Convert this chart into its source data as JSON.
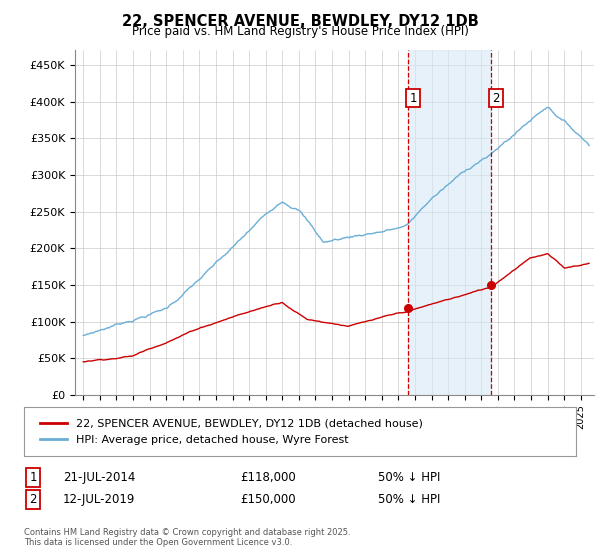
{
  "title": "22, SPENCER AVENUE, BEWDLEY, DY12 1DB",
  "subtitle": "Price paid vs. HM Land Registry's House Price Index (HPI)",
  "hpi_color": "#6baed6",
  "price_color": "#cc0000",
  "marker_color": "#cc0000",
  "vline_color": "#cc0000",
  "shade_color": "#d6e8f5",
  "annotation_box_color": "#cc0000",
  "ylim": [
    0,
    470000
  ],
  "yticks": [
    0,
    50000,
    100000,
    150000,
    200000,
    250000,
    300000,
    350000,
    400000,
    450000
  ],
  "ytick_labels": [
    "£0",
    "£50K",
    "£100K",
    "£150K",
    "£200K",
    "£250K",
    "£300K",
    "£350K",
    "£400K",
    "£450K"
  ],
  "sale1_date": "21-JUL-2014",
  "sale1_price": 118000,
  "sale1_label": "1",
  "sale1_note": "50% ↓ HPI",
  "sale2_date": "12-JUL-2019",
  "sale2_price": 150000,
  "sale2_label": "2",
  "sale2_note": "50% ↓ HPI",
  "legend_line1": "22, SPENCER AVENUE, BEWDLEY, DY12 1DB (detached house)",
  "legend_line2": "HPI: Average price, detached house, Wyre Forest",
  "footnote": "Contains HM Land Registry data © Crown copyright and database right 2025.\nThis data is licensed under the Open Government Licence v3.0.",
  "background_color": "#ffffff",
  "grid_color": "#cccccc"
}
